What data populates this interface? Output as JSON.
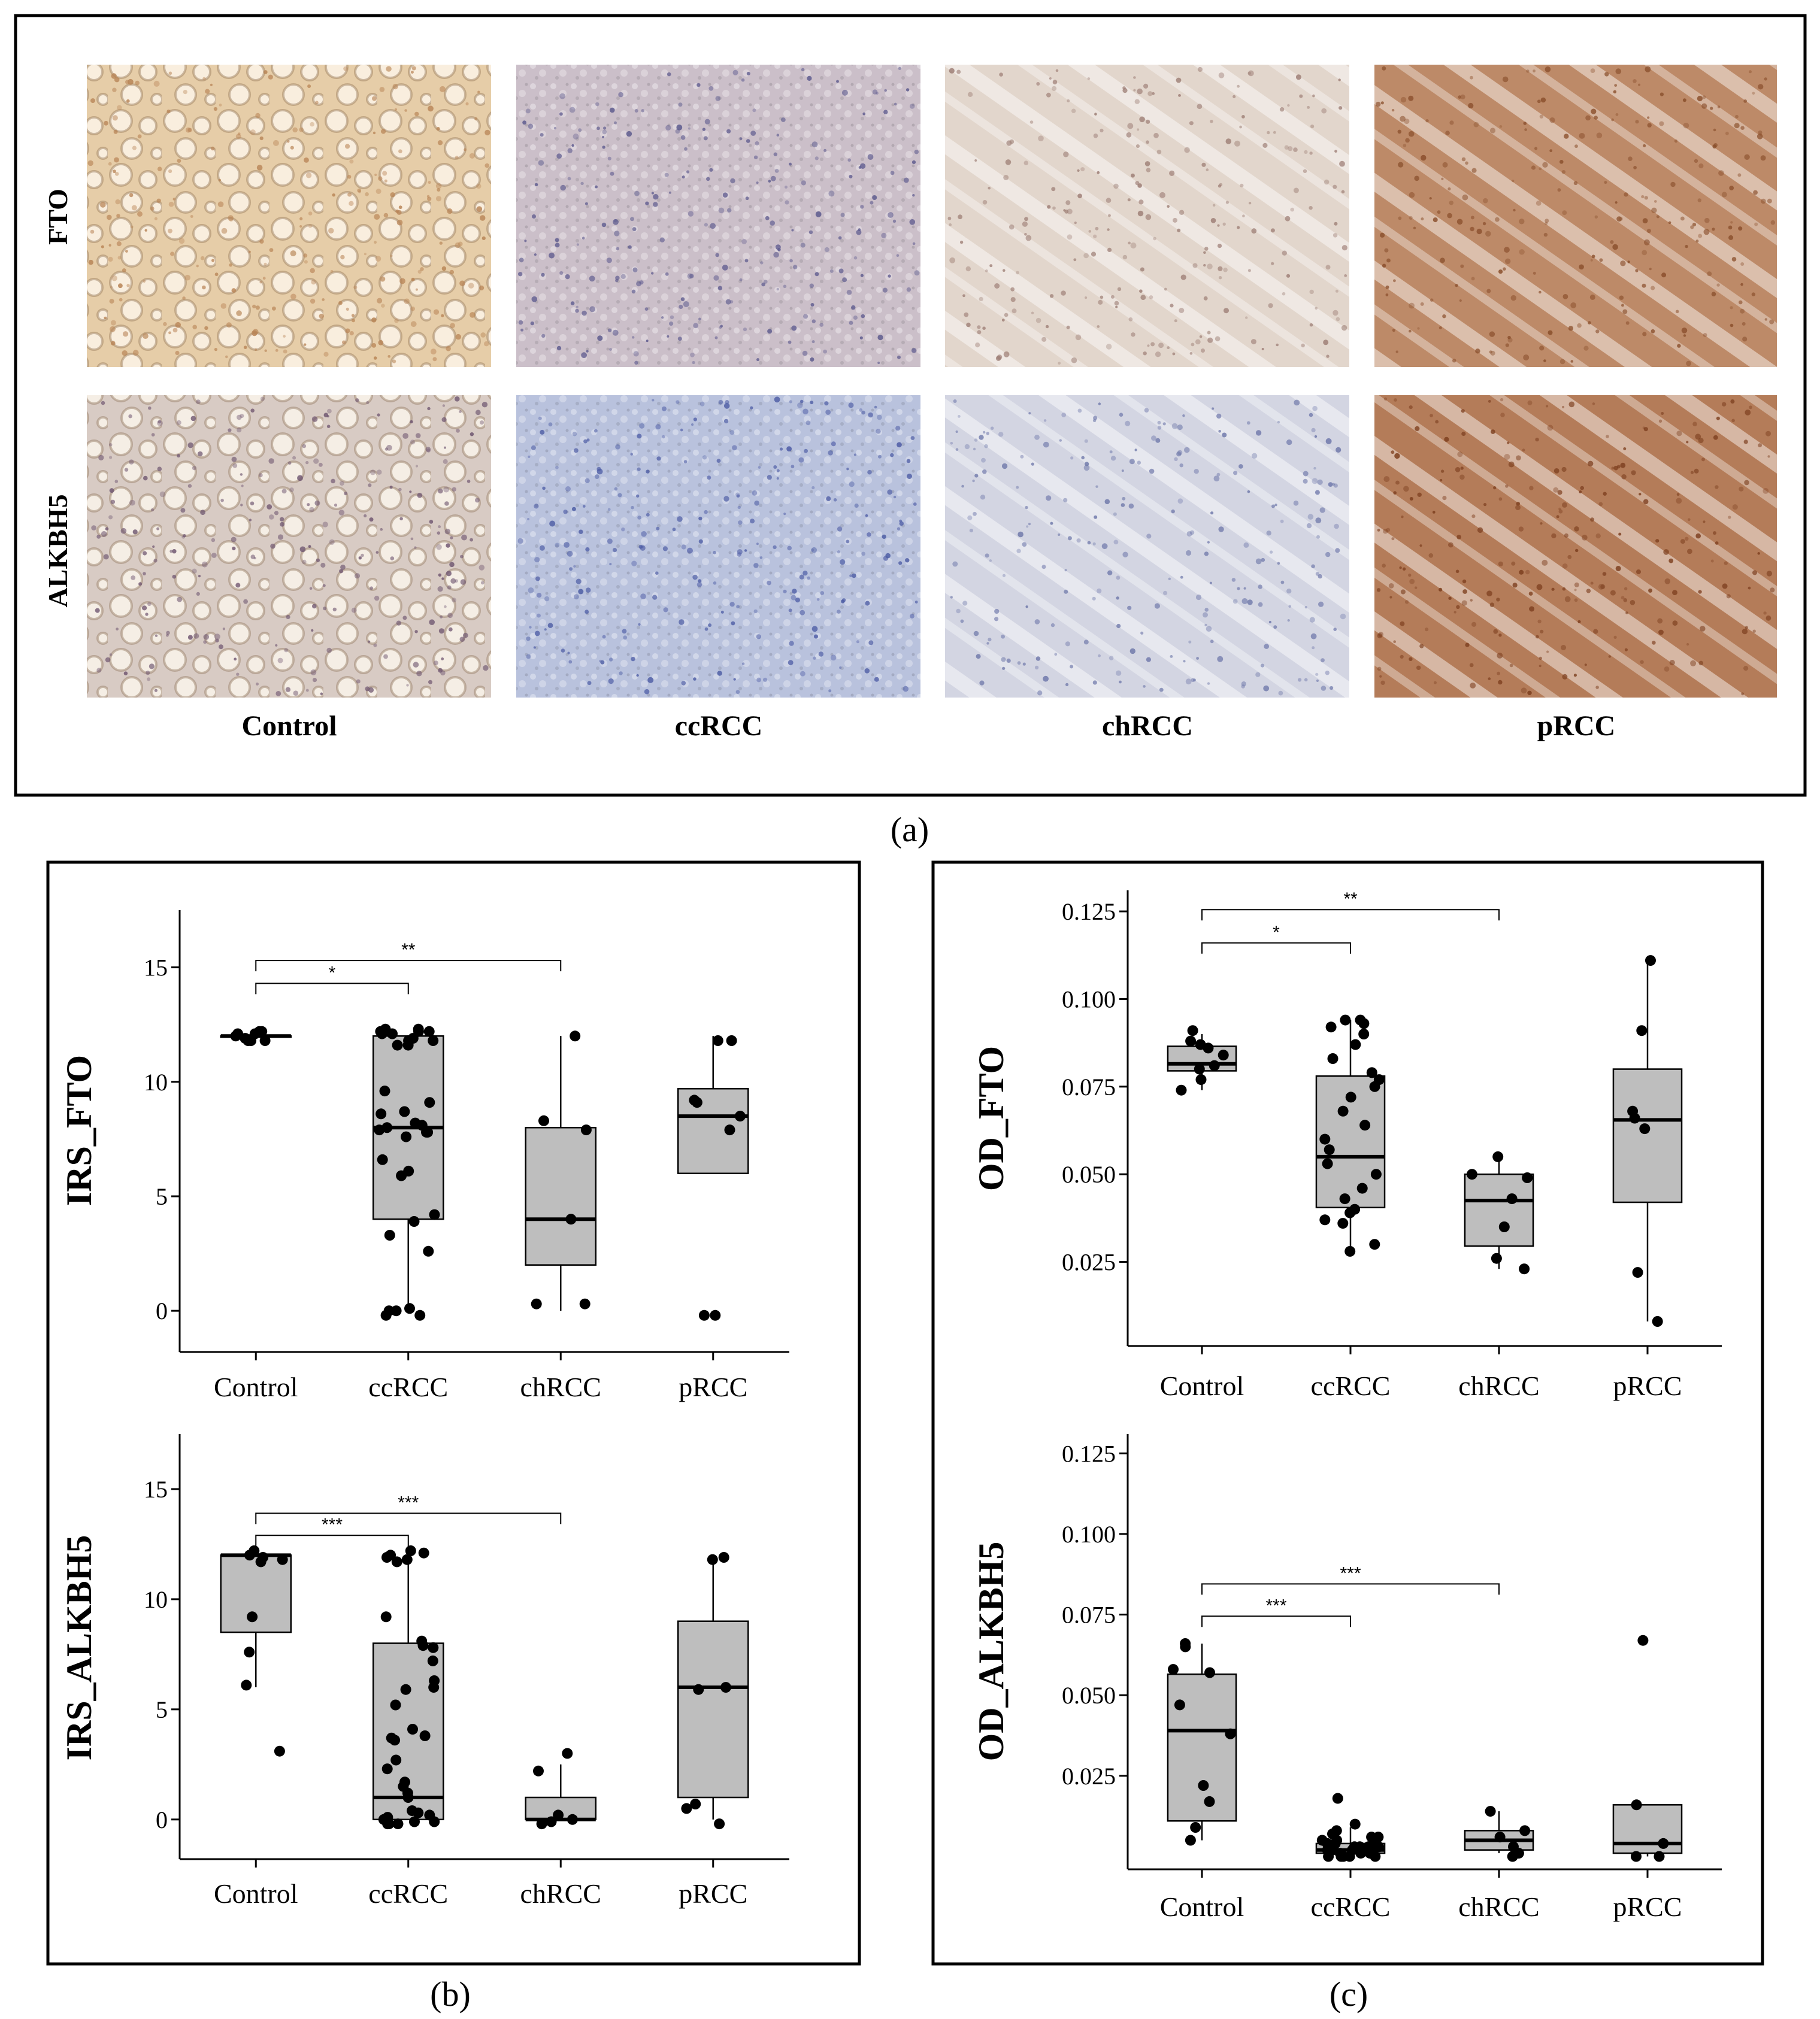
{
  "panel_a": {
    "row_labels": [
      "FTO",
      "ALKBH5"
    ],
    "column_labels": [
      "Control",
      "ccRCC",
      "chRCC",
      "pRCC"
    ],
    "tile_colors": [
      [
        "#e6cda8",
        "#cbbfc9",
        "#e2d6cc",
        "#bd8a68"
      ],
      [
        "#d8cbc4",
        "#b9c2dd",
        "#d3d5e2",
        "#b47c59"
      ]
    ],
    "tile_dot_colors": [
      [
        "#b88456",
        "#5d5a8e",
        "#9c7d74",
        "#8a4f2c"
      ],
      [
        "#6f5670",
        "#4c5ba4",
        "#6f78aa",
        "#7d3f1f"
      ]
    ]
  },
  "captions": [
    "(a)",
    "(b)",
    "(c)"
  ],
  "chart_data": [
    {
      "type": "box",
      "panel": "b",
      "ylabel": "IRS_FTO",
      "categories": [
        "Control",
        "ccRCC",
        "chRCC",
        "pRCC"
      ],
      "y_ticks": [
        0,
        5,
        10,
        15
      ],
      "ylim": [
        -1.8,
        17.5
      ],
      "grid": false,
      "boxes": [
        {
          "q1": 12,
          "median": 12,
          "q3": 12,
          "whisker_low": 12,
          "whisker_high": 12
        },
        {
          "q1": 4,
          "median": 8,
          "q3": 12,
          "whisker_low": 0,
          "whisker_high": 12
        },
        {
          "q1": 2,
          "median": 4,
          "q3": 8,
          "whisker_low": 0,
          "whisker_high": 12
        },
        {
          "q1": 6,
          "median": 8.5,
          "q3": 9.7,
          "whisker_low": 6,
          "whisker_high": 12
        }
      ],
      "points": [
        [
          12.2,
          12.1,
          11.8,
          12.2,
          11.8,
          12.0,
          11.9,
          12.1,
          11.8
        ],
        [
          12.3,
          12.2,
          12.2,
          12.3,
          12.1,
          12.2,
          12.1,
          11.9,
          11.8,
          11.8,
          11.6,
          11.6,
          9.6,
          9.1,
          8.7,
          8.6,
          8.2,
          8.1,
          8.0,
          7.9,
          7.8,
          7.8,
          7.6,
          6.6,
          6.1,
          5.9,
          4.2,
          3.9,
          3.3,
          2.6,
          0.1,
          0.0,
          0.0,
          -0.2,
          -0.2
        ],
        [
          12.0,
          8.3,
          7.9,
          4.0,
          0.3,
          0.3
        ],
        [
          11.8,
          11.8,
          9.2,
          9.1,
          8.5,
          7.9,
          -0.2,
          -0.2
        ]
      ],
      "significance": [
        {
          "from": "Control",
          "to": "ccRCC",
          "label": "*",
          "y": 14.3
        },
        {
          "from": "Control",
          "to": "chRCC",
          "label": "**",
          "y": 15.3
        }
      ]
    },
    {
      "type": "box",
      "panel": "b",
      "ylabel": "IRS_ALKBH5",
      "categories": [
        "Control",
        "ccRCC",
        "chRCC",
        "pRCC"
      ],
      "y_ticks": [
        0,
        5,
        10,
        15
      ],
      "ylim": [
        -1.8,
        17.5
      ],
      "grid": false,
      "boxes": [
        {
          "q1": 8.5,
          "median": 12,
          "q3": 12,
          "whisker_low": 6,
          "whisker_high": 12
        },
        {
          "q1": 0,
          "median": 1,
          "q3": 8,
          "whisker_low": 0,
          "whisker_high": 12
        },
        {
          "q1": 0,
          "median": 0,
          "q3": 1,
          "whisker_low": 0,
          "whisker_high": 2.5
        },
        {
          "q1": 1,
          "median": 6,
          "q3": 9,
          "whisker_low": 0,
          "whisker_high": 12
        }
      ],
      "points": [
        [
          12.2,
          12.0,
          11.8,
          11.7,
          11.9,
          9.2,
          7.6,
          6.1,
          3.1
        ],
        [
          12.2,
          12.1,
          12.0,
          11.9,
          11.8,
          11.7,
          9.2,
          8.1,
          7.9,
          7.8,
          7.2,
          6.3,
          6.0,
          5.9,
          5.2,
          4.1,
          3.8,
          3.7,
          3.6,
          2.7,
          2.3,
          1.7,
          1.5,
          1.2,
          1.0,
          0.4,
          0.3,
          0.2,
          0.1,
          0.0,
          -0.1,
          -0.1,
          -0.2,
          -0.2,
          -0.2
        ],
        [
          3.0,
          2.2,
          0.2,
          0.0,
          -0.1,
          -0.2
        ],
        [
          11.9,
          11.8,
          6.0,
          5.9,
          0.7,
          0.5,
          -0.2
        ]
      ],
      "significance": [
        {
          "from": "Control",
          "to": "ccRCC",
          "label": "***",
          "y": 12.9
        },
        {
          "from": "Control",
          "to": "chRCC",
          "label": "***",
          "y": 13.9
        }
      ]
    },
    {
      "type": "box",
      "panel": "c",
      "ylabel": "OD_FTO",
      "categories": [
        "Control",
        "ccRCC",
        "chRCC",
        "pRCC"
      ],
      "y_ticks": [
        0.025,
        0.05,
        0.075,
        0.1,
        0.125
      ],
      "y_tick_labels": [
        "0.025",
        "0.050",
        "0.075",
        "0.100",
        "0.125"
      ],
      "ylim": [
        0.001,
        0.131
      ],
      "grid": false,
      "boxes": [
        {
          "q1": 0.0795,
          "median": 0.0815,
          "q3": 0.0865,
          "whisker_low": 0.074,
          "whisker_high": 0.09
        },
        {
          "q1": 0.0405,
          "median": 0.055,
          "q3": 0.078,
          "whisker_low": 0.028,
          "whisker_high": 0.094
        },
        {
          "q1": 0.0295,
          "median": 0.0425,
          "q3": 0.05,
          "whisker_low": 0.023,
          "whisker_high": 0.055
        },
        {
          "q1": 0.042,
          "median": 0.0655,
          "q3": 0.08,
          "whisker_low": 0.008,
          "whisker_high": 0.111
        }
      ],
      "points": [
        [
          0.091,
          0.088,
          0.087,
          0.086,
          0.084,
          0.081,
          0.08,
          0.077,
          0.074
        ],
        [
          0.094,
          0.094,
          0.093,
          0.092,
          0.09,
          0.087,
          0.083,
          0.079,
          0.077,
          0.075,
          0.072,
          0.068,
          0.064,
          0.06,
          0.057,
          0.053,
          0.05,
          0.046,
          0.043,
          0.04,
          0.039,
          0.037,
          0.036,
          0.03,
          0.028
        ],
        [
          0.055,
          0.05,
          0.049,
          0.043,
          0.035,
          0.026,
          0.023
        ],
        [
          0.111,
          0.091,
          0.068,
          0.066,
          0.063,
          0.022,
          0.008
        ]
      ],
      "significance": [
        {
          "from": "Control",
          "to": "ccRCC",
          "label": "*",
          "y": 0.116
        },
        {
          "from": "Control",
          "to": "chRCC",
          "label": "**",
          "y": 0.1255
        }
      ]
    },
    {
      "type": "box",
      "panel": "c",
      "ylabel": "OD_ALKBH5",
      "categories": [
        "Control",
        "ccRCC",
        "chRCC",
        "pRCC"
      ],
      "y_ticks": [
        0.025,
        0.05,
        0.075,
        0.1,
        0.125
      ],
      "y_tick_labels": [
        "0.025",
        "0.050",
        "0.075",
        "0.100",
        "0.125"
      ],
      "ylim": [
        -0.004,
        0.131
      ],
      "grid": false,
      "boxes": [
        {
          "q1": 0.011,
          "median": 0.039,
          "q3": 0.0565,
          "whisker_low": 0.005,
          "whisker_high": 0.066
        },
        {
          "q1": 0.001,
          "median": 0.002,
          "q3": 0.004,
          "whisker_low": 0.0,
          "whisker_high": 0.009
        },
        {
          "q1": 0.002,
          "median": 0.005,
          "q3": 0.008,
          "whisker_low": 0.001,
          "whisker_high": 0.014
        },
        {
          "q1": 0.001,
          "median": 0.004,
          "q3": 0.016,
          "whisker_low": 0.0,
          "whisker_high": 0.016
        }
      ],
      "points": [
        [
          0.066,
          0.065,
          0.058,
          0.057,
          0.047,
          0.038,
          0.022,
          0.017,
          0.009,
          0.005
        ],
        [
          0.018,
          0.01,
          0.008,
          0.007,
          0.006,
          0.006,
          0.005,
          0.005,
          0.004,
          0.004,
          0.004,
          0.003,
          0.003,
          0.003,
          0.003,
          0.002,
          0.002,
          0.002,
          0.002,
          0.001,
          0.001,
          0.001,
          0.001,
          0.0,
          0.0,
          0.0,
          0.0,
          0.0
        ],
        [
          0.014,
          0.008,
          0.006,
          0.003,
          0.001,
          0.0
        ],
        [
          0.067,
          0.016,
          0.004,
          0.0,
          0.0
        ]
      ],
      "significance": [
        {
          "from": "Control",
          "to": "ccRCC",
          "label": "***",
          "y": 0.0745
        },
        {
          "from": "Control",
          "to": "chRCC",
          "label": "***",
          "y": 0.0845
        }
      ]
    }
  ]
}
